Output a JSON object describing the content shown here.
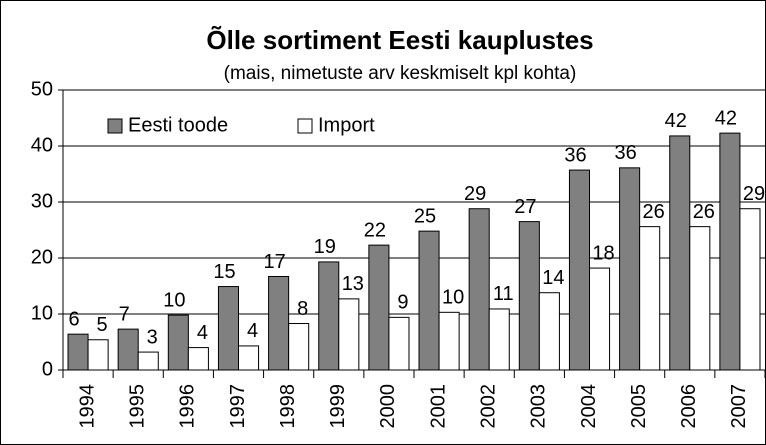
{
  "chart_data": {
    "type": "bar",
    "title": "Õlle sortiment Eesti kauplustes",
    "subtitle": "(mais, nimetuste arv keskmiselt kpl kohta)",
    "categories": [
      "1994",
      "1995",
      "1996",
      "1997",
      "1998",
      "1999",
      "2000",
      "2001",
      "2002",
      "2003",
      "2004",
      "2005",
      "2006",
      "2007"
    ],
    "series": [
      {
        "name": "Eesti toode",
        "color": "#808080",
        "values": [
          6.4,
          7.3,
          9.8,
          14.9,
          16.7,
          19.3,
          22.3,
          24.8,
          28.8,
          26.5,
          35.7,
          36.1,
          41.8,
          42.3
        ],
        "value_labels": [
          "6",
          "7",
          "10",
          "15",
          "17",
          "19",
          "22",
          "25",
          "29",
          "27",
          "36",
          "36",
          "42",
          "42"
        ]
      },
      {
        "name": "Import",
        "color": "#ffffff",
        "values": [
          5.4,
          3.2,
          4.0,
          4.3,
          8.3,
          12.7,
          9.4,
          10.3,
          10.9,
          13.8,
          18.2,
          25.6,
          25.6,
          28.8
        ],
        "value_labels": [
          "5",
          "3",
          "4",
          "4",
          "8",
          "13",
          "9",
          "10",
          "11",
          "14",
          "18",
          "26",
          "26",
          "29"
        ]
      }
    ],
    "ylim": [
      0,
      50
    ],
    "yticks": [
      0,
      10,
      20,
      30,
      40,
      50
    ],
    "grid": true,
    "legend": "top-left"
  }
}
